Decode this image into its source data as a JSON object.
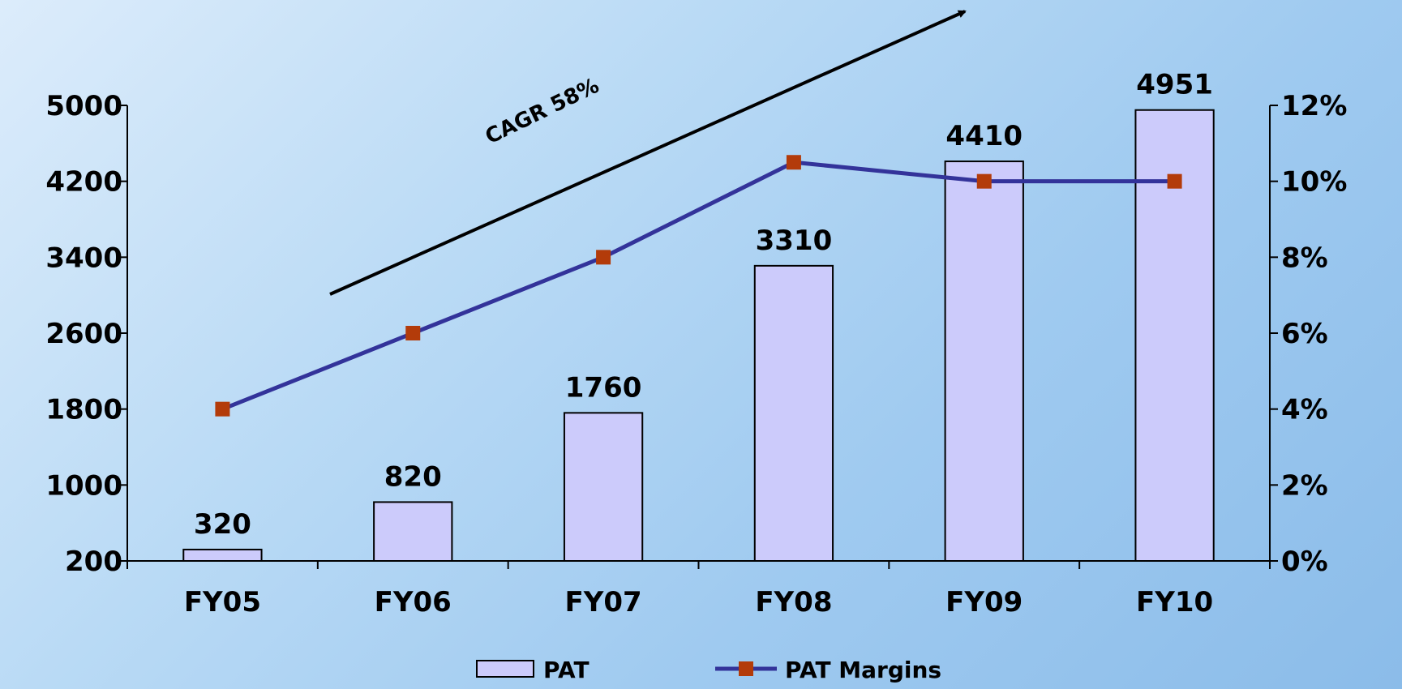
{
  "chart_data": {
    "type": "bar",
    "categories": [
      "FY05",
      "FY06",
      "FY07",
      "FY08",
      "FY09",
      "FY10"
    ],
    "series": [
      {
        "name": "PAT",
        "type": "bar",
        "axis": "left",
        "values": [
          320,
          820,
          1760,
          3310,
          4410,
          4951
        ],
        "color": "#cccbfb"
      },
      {
        "name": "PAT Margins",
        "type": "line",
        "axis": "right",
        "values": [
          4,
          6,
          8,
          10.5,
          10,
          10
        ],
        "color": "#33339a",
        "marker_color": "#b33b0a"
      }
    ],
    "y_left": {
      "ticks": [
        200,
        1000,
        1800,
        2600,
        3400,
        4200,
        5000
      ],
      "ylim": [
        200,
        5000
      ]
    },
    "y_right": {
      "ticks": [
        "0%",
        "2%",
        "4%",
        "6%",
        "8%",
        "10%",
        "12%"
      ],
      "ylim": [
        0,
        12
      ]
    },
    "title": "",
    "xlabel": "",
    "ylabel": "",
    "annotation": "CAGR 58%",
    "legend": {
      "placement": "bottom-center",
      "entries": [
        "PAT",
        "PAT Margins"
      ]
    },
    "grid": false
  }
}
